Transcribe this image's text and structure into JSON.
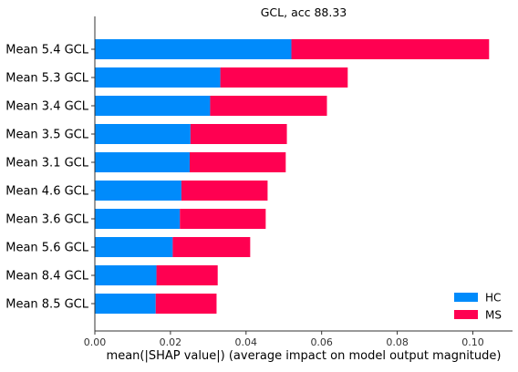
{
  "chart_data": {
    "type": "bar",
    "orientation": "horizontal",
    "stacked": true,
    "title": "GCL, acc 88.33",
    "xlabel": "mean(|SHAP value|) (average impact on model output magnitude)",
    "ylabel": "",
    "categories": [
      "Mean 5.4 GCL",
      "Mean 5.3 GCL",
      "Mean 3.4 GCL",
      "Mean 3.5 GCL",
      "Mean 3.1 GCL",
      "Mean 4.6 GCL",
      "Mean 3.6 GCL",
      "Mean 5.6 GCL",
      "Mean 8.4 GCL",
      "Mean 8.5 GCL"
    ],
    "series": [
      {
        "name": "HC",
        "color": "#008bfb",
        "values": [
          0.052,
          0.0332,
          0.0305,
          0.0253,
          0.0251,
          0.0229,
          0.0225,
          0.0206,
          0.0163,
          0.0161
        ]
      },
      {
        "name": "MS",
        "color": "#ff0051",
        "values": [
          0.0523,
          0.0337,
          0.0309,
          0.0255,
          0.0254,
          0.0228,
          0.0227,
          0.0205,
          0.0162,
          0.0161
        ]
      }
    ],
    "xlim": [
      0,
      0.1105
    ],
    "xticks": [
      0.0,
      0.02,
      0.04,
      0.06,
      0.08,
      0.1
    ],
    "xtick_labels": [
      "0.00",
      "0.02",
      "0.04",
      "0.06",
      "0.08",
      "0.10"
    ],
    "grid": false,
    "legend_position": "bottom-right"
  }
}
